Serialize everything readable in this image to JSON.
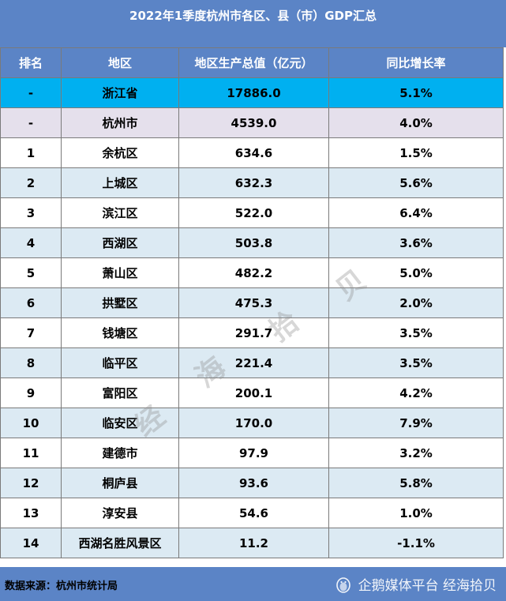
{
  "title": "2022年1季度杭州市各区、县（市）GDP汇总",
  "headers": [
    "排名",
    "地区",
    "地区生产总值（亿元）",
    "同比增长率"
  ],
  "rows": [
    {
      "rank": "-",
      "region": "浙江省",
      "gdp": "17886.0",
      "growth": "5.1%"
    },
    {
      "rank": "-",
      "region": "杭州市",
      "gdp": "4539.0",
      "growth": "4.0%"
    },
    {
      "rank": "1",
      "region": "余杭区",
      "gdp": "634.6",
      "growth": "1.5%"
    },
    {
      "rank": "2",
      "region": "上城区",
      "gdp": "632.3",
      "growth": "5.6%"
    },
    {
      "rank": "3",
      "region": "滨江区",
      "gdp": "522.0",
      "growth": "6.4%"
    },
    {
      "rank": "4",
      "region": "西湖区",
      "gdp": "503.8",
      "growth": "3.6%"
    },
    {
      "rank": "5",
      "region": "萧山区",
      "gdp": "482.2",
      "growth": "5.0%"
    },
    {
      "rank": "6",
      "region": "拱墅区",
      "gdp": "475.3",
      "growth": "2.0%"
    },
    {
      "rank": "7",
      "region": "钱塘区",
      "gdp": "291.7",
      "growth": "3.5%"
    },
    {
      "rank": "8",
      "region": "临平区",
      "gdp": "221.4",
      "growth": "3.5%"
    },
    {
      "rank": "9",
      "region": "富阳区",
      "gdp": "200.1",
      "growth": "4.2%"
    },
    {
      "rank": "10",
      "region": "临安区",
      "gdp": "170.0",
      "growth": "7.9%"
    },
    {
      "rank": "11",
      "region": "建德市",
      "gdp": "97.9",
      "growth": "3.2%"
    },
    {
      "rank": "12",
      "region": "桐庐县",
      "gdp": "93.6",
      "growth": "5.8%"
    },
    {
      "rank": "13",
      "region": "淳安县",
      "gdp": "54.6",
      "growth": "1.0%"
    },
    {
      "rank": "14",
      "region": "西湖名胜风景区",
      "gdp": "11.2",
      "growth": "-1.1%"
    }
  ],
  "footer": {
    "source": "数据来源：杭州市统计局",
    "brand": "企鹅媒体平台 经海拾贝",
    "brand_icon": "penguin-icon"
  },
  "watermark": [
    "经",
    "海",
    "拾",
    "贝"
  ],
  "colors": {
    "header_blue": "#5b84c6",
    "province_highlight": "#00b0f0",
    "city_highlight": "#e5e0ec",
    "alt_row": "#dceaf3"
  }
}
